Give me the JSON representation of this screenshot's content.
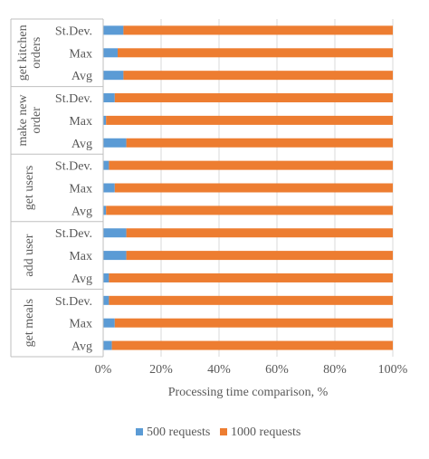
{
  "chart_data": {
    "type": "bar",
    "orientation": "horizontal",
    "stacking": "percent",
    "xlabel": "Processing time comparison, %",
    "xlim": [
      0,
      100
    ],
    "xticks": [
      "0%",
      "20%",
      "40%",
      "60%",
      "80%",
      "100%"
    ],
    "grid": true,
    "legend_position": "bottom",
    "groups": [
      {
        "name": "get kitchen orders",
        "name_lines": [
          "get kitchen",
          "orders"
        ],
        "categories": [
          "St.Dev.",
          "Max",
          "Avg"
        ]
      },
      {
        "name": "make new order",
        "name_lines": [
          "make new",
          "order"
        ],
        "categories": [
          "St.Dev.",
          "Max",
          "Avg"
        ]
      },
      {
        "name": "get users",
        "name_lines": [
          "get users"
        ],
        "categories": [
          "St.Dev.",
          "Max",
          "Avg"
        ]
      },
      {
        "name": "add user",
        "name_lines": [
          "add user"
        ],
        "categories": [
          "St.Dev.",
          "Max",
          "Avg"
        ]
      },
      {
        "name": "get meals",
        "name_lines": [
          "get meals"
        ],
        "categories": [
          "St.Dev.",
          "Max",
          "Avg"
        ]
      }
    ],
    "series": [
      {
        "name": "500 requests",
        "color": "#5B9BD5",
        "values": [
          7,
          5,
          7,
          4,
          1,
          8,
          2,
          4,
          1,
          8,
          8,
          2,
          2,
          4,
          3
        ]
      },
      {
        "name": "1000 requests",
        "color": "#ED7D31",
        "values": [
          93,
          95,
          93,
          96,
          99,
          92,
          98,
          96,
          99,
          92,
          92,
          98,
          98,
          96,
          97
        ]
      }
    ]
  }
}
